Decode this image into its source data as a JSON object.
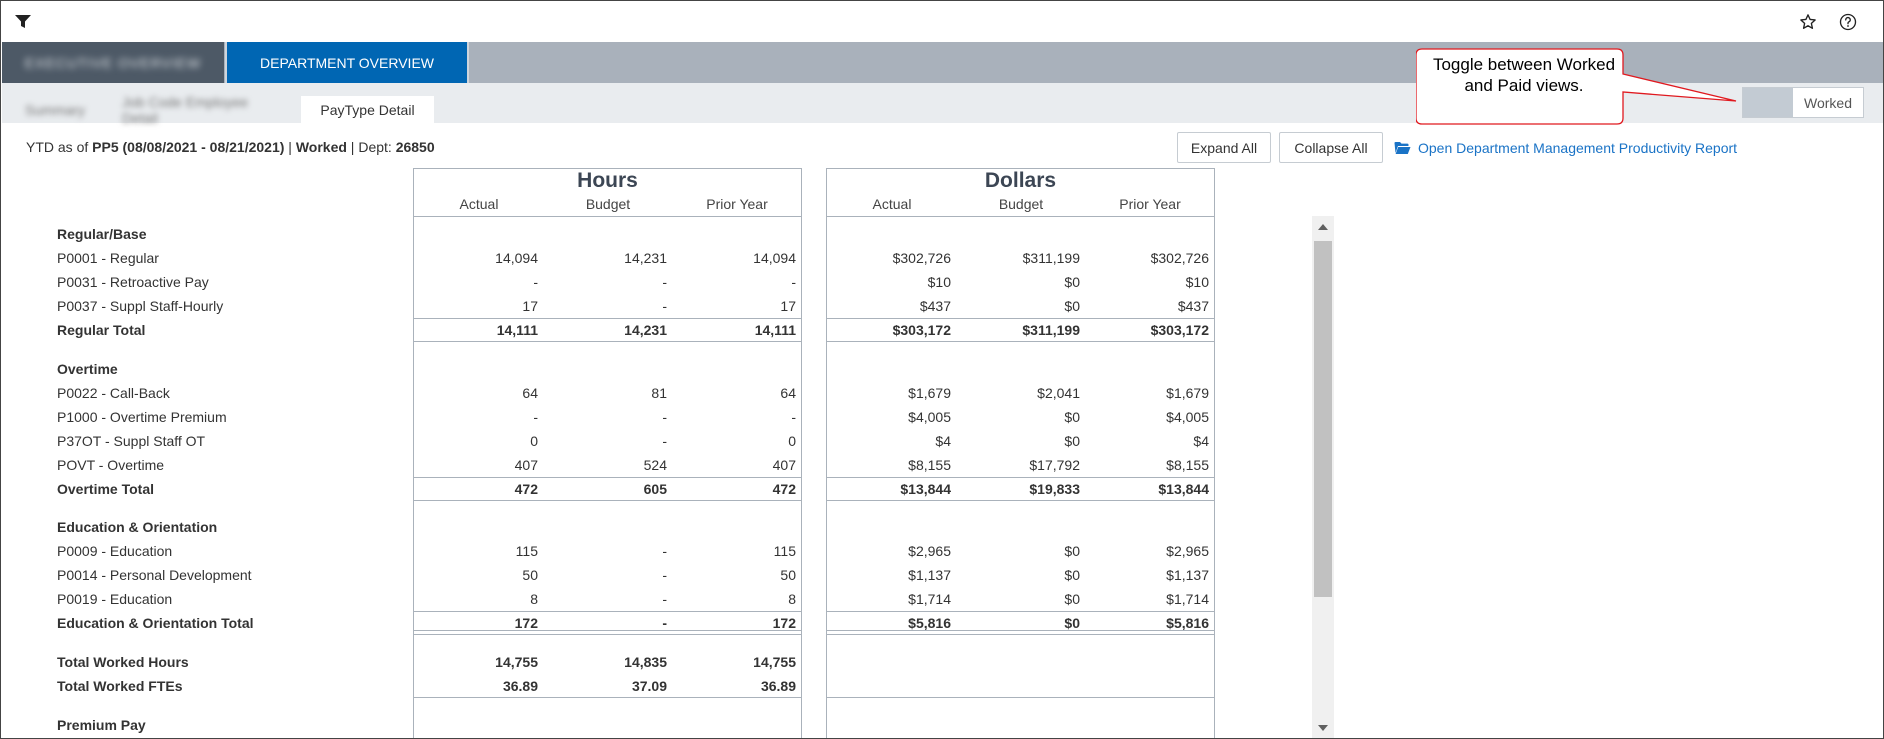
{
  "toolbar": {
    "filter_icon": "filter-icon",
    "star_icon": "star-icon",
    "help_icon": "help-icon"
  },
  "primary_tabs": [
    {
      "label": "EXECUTIVE OVERVIEW",
      "active": false
    },
    {
      "label": "DEPARTMENT OVERVIEW",
      "active": true
    }
  ],
  "sub_tabs": [
    {
      "label": "Summary",
      "active": false
    },
    {
      "label": "Job Code Employee Detail",
      "active": false
    },
    {
      "label": "PayType Detail",
      "active": true
    }
  ],
  "callout": {
    "text": "Toggle between Worked and Paid views."
  },
  "toggle": {
    "label": "Worked"
  },
  "status": {
    "prefix": "YTD as of ",
    "period": "PP5 (08/08/2021 - 08/21/2021)",
    "sep1": " | ",
    "view": "Worked",
    "sep2": " | Dept: ",
    "dept": "26850"
  },
  "buttons": {
    "expand_all": "Expand All",
    "collapse_all": "Collapse All"
  },
  "report_link": {
    "label": "Open Department Management Productivity Report",
    "icon": "folder-open-icon"
  },
  "tables": {
    "hours": {
      "title": "Hours",
      "columns": [
        "Actual",
        "Budget",
        "Prior Year"
      ]
    },
    "dollars": {
      "title": "Dollars",
      "columns": [
        "Actual",
        "Budget",
        "Prior Year"
      ]
    }
  },
  "rows": [
    {
      "label": "Regular/Base",
      "type": "section"
    },
    {
      "label": "P0001 - Regular",
      "type": "item",
      "hours": [
        "14,094",
        "14,231",
        "14,094"
      ],
      "dollars": [
        "$302,726",
        "$311,199",
        "$302,726"
      ]
    },
    {
      "label": "P0031 - Retroactive Pay",
      "type": "item",
      "hours": [
        "-",
        "-",
        "-"
      ],
      "dollars": [
        "$10",
        "$0",
        "$10"
      ]
    },
    {
      "label": "P0037 - Suppl Staff-Hourly",
      "type": "item",
      "hours": [
        "17",
        "-",
        "17"
      ],
      "dollars": [
        "$437",
        "$0",
        "$437"
      ]
    },
    {
      "label": "Regular Total",
      "type": "total",
      "hours": [
        "14,111",
        "14,231",
        "14,111"
      ],
      "dollars": [
        "$303,172",
        "$311,199",
        "$303,172"
      ]
    },
    {
      "label": "Overtime",
      "type": "section"
    },
    {
      "label": "P0022 - Call-Back",
      "type": "item",
      "hours": [
        "64",
        "81",
        "64"
      ],
      "dollars": [
        "$1,679",
        "$2,041",
        "$1,679"
      ]
    },
    {
      "label": "P1000 - Overtime Premium",
      "type": "item",
      "hours": [
        "-",
        "-",
        "-"
      ],
      "dollars": [
        "$4,005",
        "$0",
        "$4,005"
      ]
    },
    {
      "label": "P37OT - Suppl Staff OT",
      "type": "item",
      "hours": [
        "0",
        "-",
        "0"
      ],
      "dollars": [
        "$4",
        "$0",
        "$4"
      ]
    },
    {
      "label": "POVT - Overtime",
      "type": "item",
      "hours": [
        "407",
        "524",
        "407"
      ],
      "dollars": [
        "$8,155",
        "$17,792",
        "$8,155"
      ]
    },
    {
      "label": "Overtime Total",
      "type": "total",
      "hours": [
        "472",
        "605",
        "472"
      ],
      "dollars": [
        "$13,844",
        "$19,833",
        "$13,844"
      ]
    },
    {
      "label": "Education & Orientation",
      "type": "section"
    },
    {
      "label": "P0009 - Education",
      "type": "item",
      "hours": [
        "115",
        "-",
        "115"
      ],
      "dollars": [
        "$2,965",
        "$0",
        "$2,965"
      ]
    },
    {
      "label": "P0014 - Personal Development",
      "type": "item",
      "hours": [
        "50",
        "-",
        "50"
      ],
      "dollars": [
        "$1,137",
        "$0",
        "$1,137"
      ]
    },
    {
      "label": "P0019 - Education",
      "type": "item",
      "hours": [
        "8",
        "-",
        "8"
      ],
      "dollars": [
        "$1,714",
        "$0",
        "$1,714"
      ]
    },
    {
      "label": "Education & Orientation Total",
      "type": "total",
      "hours": [
        "172",
        "-",
        "172"
      ],
      "dollars": [
        "$5,816",
        "$0",
        "$5,816"
      ]
    },
    {
      "label": "Total Worked Hours",
      "type": "grand",
      "hours": [
        "14,755",
        "14,835",
        "14,755"
      ]
    },
    {
      "label": "Total Worked FTEs",
      "type": "grand",
      "hours": [
        "36.89",
        "37.09",
        "36.89"
      ]
    },
    {
      "label": "Premium Pay",
      "type": "section"
    }
  ]
}
